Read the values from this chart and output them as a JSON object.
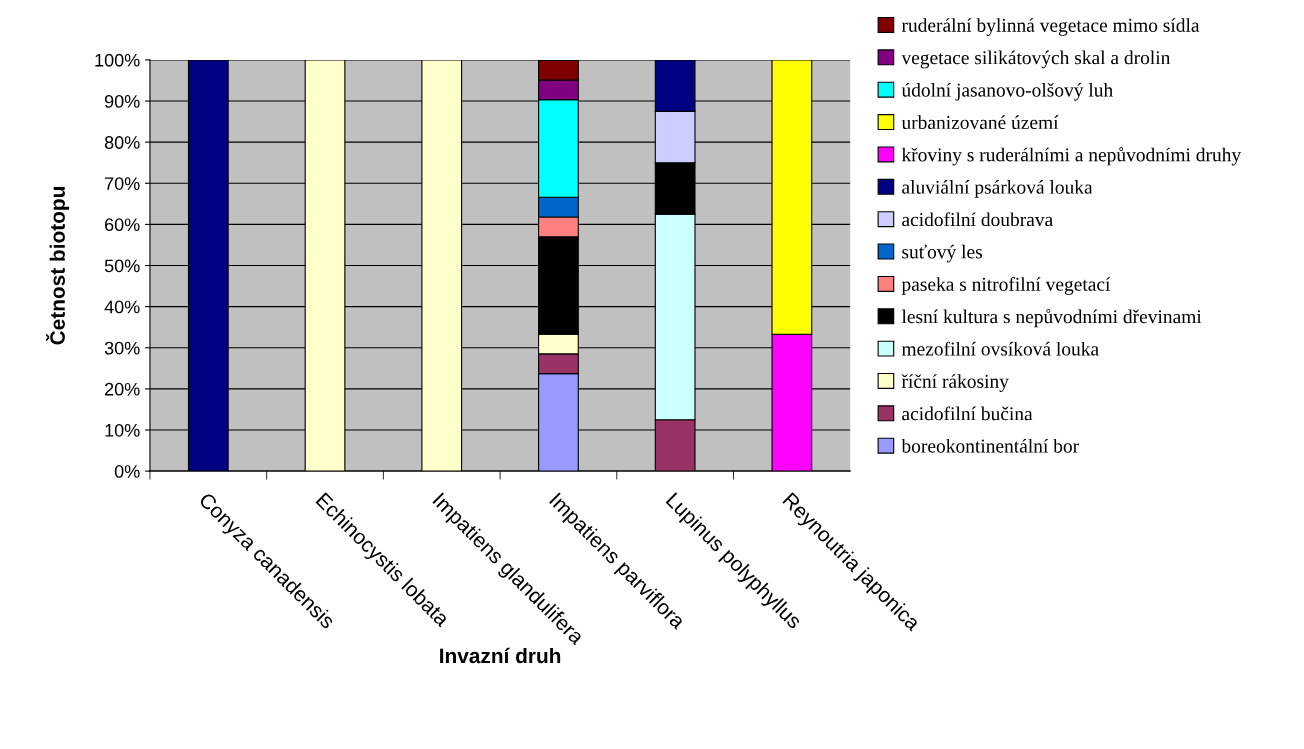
{
  "chart_data": {
    "type": "bar",
    "stacked": true,
    "xlabel": "Invazní druh",
    "ylabel": "Četnost biotopu",
    "categories": [
      "Conyza canadensis",
      "Echinocystis lobata",
      "Impatiens glandulifera",
      "Impatiens parviflora",
      "Lupinus polyphyllus",
      "Reynoutria japonica"
    ],
    "ylim": [
      0,
      100
    ],
    "yticks": [
      {
        "value": 0,
        "label": "0%"
      },
      {
        "value": 10,
        "label": "10%"
      },
      {
        "value": 20,
        "label": "20%"
      },
      {
        "value": 30,
        "label": "30%"
      },
      {
        "value": 40,
        "label": "40%"
      },
      {
        "value": 50,
        "label": "50%"
      },
      {
        "value": 60,
        "label": "60%"
      },
      {
        "value": 70,
        "label": "70%"
      },
      {
        "value": 80,
        "label": "80%"
      },
      {
        "value": 90,
        "label": "90%"
      },
      {
        "value": 100,
        "label": "100%"
      }
    ],
    "grid": "y",
    "legend": "right",
    "series": [
      {
        "name": "boreokontinentální bor",
        "color": "#9999ff",
        "values": [
          0,
          0,
          0,
          23.7,
          0,
          0
        ]
      },
      {
        "name": "acidofilní bučina",
        "color": "#993366",
        "values": [
          0,
          0,
          0,
          4.8,
          12.5,
          0
        ]
      },
      {
        "name": "říční rákosiny",
        "color": "#ffffcc",
        "values": [
          0,
          100,
          100,
          4.8,
          0,
          0
        ]
      },
      {
        "name": "mezofilní ovsíková louka",
        "color": "#ccffff",
        "values": [
          0,
          0,
          0,
          0,
          50,
          0
        ]
      },
      {
        "name": "lesní kultura s nepůvodními dřevinami",
        "color": "#000000",
        "values": [
          0,
          0,
          0,
          23.7,
          12.5,
          0
        ]
      },
      {
        "name": "paseka s nitrofilní vegetací",
        "color": "#ff8080",
        "values": [
          0,
          0,
          0,
          4.8,
          0,
          0
        ]
      },
      {
        "name": "suťový les",
        "color": "#0066cc",
        "values": [
          0,
          0,
          0,
          4.8,
          0,
          0
        ]
      },
      {
        "name": "acidofilní doubrava",
        "color": "#ccccff",
        "values": [
          0,
          0,
          0,
          0,
          12.5,
          0
        ]
      },
      {
        "name": "aluviální psárková louka",
        "color": "#000080",
        "values": [
          100,
          0,
          0,
          0,
          12.5,
          0
        ]
      },
      {
        "name": "křoviny s ruderálními a nepůvodními druhy",
        "color": "#ff00ff",
        "values": [
          0,
          0,
          0,
          0,
          0,
          33.3
        ]
      },
      {
        "name": "urbanizované území",
        "color": "#ffff00",
        "values": [
          0,
          0,
          0,
          0,
          0,
          66.7
        ]
      },
      {
        "name": "údolní jasanovo-olšový luh",
        "color": "#00ffff",
        "values": [
          0,
          0,
          0,
          23.7,
          0,
          0
        ]
      },
      {
        "name": "vegetace silikátových skal a drolin",
        "color": "#800080",
        "values": [
          0,
          0,
          0,
          4.8,
          0,
          0
        ]
      },
      {
        "name": "ruderální bylinná vegetace mimo sídla",
        "color": "#800000",
        "values": [
          0,
          0,
          0,
          4.8,
          0,
          0
        ]
      }
    ]
  }
}
